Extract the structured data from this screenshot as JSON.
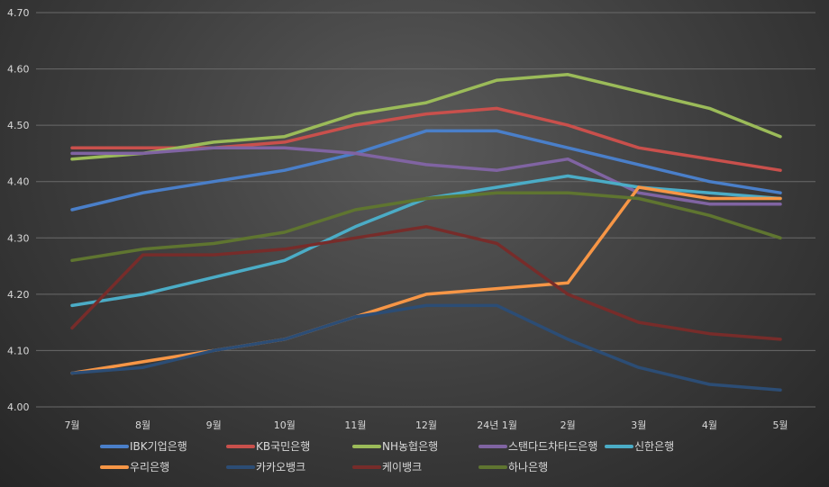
{
  "chart_data": {
    "type": "line",
    "title": "",
    "xlabel": "",
    "ylabel": "",
    "categories": [
      "7월",
      "8월",
      "9월",
      "10월",
      "11월",
      "12월",
      "24년 1월",
      "2월",
      "3월",
      "4월",
      "5월"
    ],
    "ylim": [
      4.0,
      4.7
    ],
    "yticks": [
      "4.00",
      "4.10",
      "4.20",
      "4.30",
      "4.40",
      "4.50",
      "4.60",
      "4.70"
    ],
    "grid": true,
    "legend_position": "bottom",
    "series": [
      {
        "name": "IBK기업은행",
        "color": "#4a7fc9",
        "values": [
          4.35,
          4.38,
          4.4,
          4.42,
          4.45,
          4.49,
          4.49,
          4.46,
          4.43,
          4.4,
          4.38
        ]
      },
      {
        "name": "KB국민은행",
        "color": "#c9504c",
        "values": [
          4.46,
          4.46,
          4.46,
          4.47,
          4.5,
          4.52,
          4.53,
          4.5,
          4.46,
          4.44,
          4.42
        ]
      },
      {
        "name": "NH농협은행",
        "color": "#9bbb59",
        "values": [
          4.44,
          4.45,
          4.47,
          4.48,
          4.52,
          4.54,
          4.58,
          4.59,
          4.56,
          4.53,
          4.48
        ]
      },
      {
        "name": "스탠다드차타드은행",
        "color": "#8064a2",
        "values": [
          4.45,
          4.45,
          4.46,
          4.46,
          4.45,
          4.43,
          4.42,
          4.44,
          4.38,
          4.36,
          4.36
        ]
      },
      {
        "name": "신한은행",
        "color": "#4bacc6",
        "values": [
          4.18,
          4.2,
          4.23,
          4.26,
          4.32,
          4.37,
          4.39,
          4.41,
          4.39,
          4.38,
          4.37
        ]
      },
      {
        "name": "우리은행",
        "color": "#f79646",
        "values": [
          4.06,
          4.08,
          4.1,
          4.12,
          4.16,
          4.2,
          4.21,
          4.22,
          4.39,
          4.37,
          4.37
        ]
      },
      {
        "name": "카카오뱅크",
        "color": "#2c4d75",
        "values": [
          4.06,
          4.07,
          4.1,
          4.12,
          4.16,
          4.18,
          4.18,
          4.12,
          4.07,
          4.04,
          4.03
        ]
      },
      {
        "name": "케이뱅크",
        "color": "#772c2a",
        "values": [
          4.14,
          4.27,
          4.27,
          4.28,
          4.3,
          4.32,
          4.29,
          4.2,
          4.15,
          4.13,
          4.12
        ]
      },
      {
        "name": "하나은행",
        "color": "#5f7530",
        "values": [
          4.26,
          4.28,
          4.29,
          4.31,
          4.35,
          4.37,
          4.38,
          4.38,
          4.37,
          4.34,
          4.3
        ]
      }
    ]
  }
}
